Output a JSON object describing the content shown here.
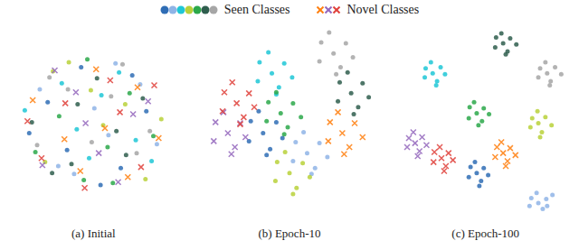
{
  "legend_groups": [
    {
      "label": "Seen Classes",
      "marker": "circle"
    },
    {
      "label": "Novel Classes",
      "marker": "x"
    }
  ],
  "chart_data": [
    {
      "type": "scatter",
      "title": "(a) Initial",
      "xlim": [
        -10,
        10
      ],
      "ylim": [
        -10,
        10
      ],
      "tick_labels": false,
      "grid": false,
      "series": [
        {
          "color": "#2f6db5",
          "marker": "circle",
          "x": [
            -5.2,
            3.1,
            -1.4,
            6.0,
            -7.3,
            0.8,
            4.4,
            -3.0
          ],
          "y": [
            2.1,
            -4.5,
            5.6,
            1.2,
            -1.0,
            -6.2,
            4.8,
            -2.7
          ]
        },
        {
          "color": "#8fb4e6",
          "marker": "circle",
          "x": [
            2.5,
            -6.1,
            7.2,
            -2.2,
            0.1,
            5.3,
            -4.0,
            1.7
          ],
          "y": [
            6.0,
            3.4,
            -2.1,
            -5.1,
            1.5,
            3.9,
            -4.3,
            -1.2
          ]
        },
        {
          "color": "#1fc7d6",
          "marker": "circle",
          "x": [
            -0.5,
            4.8,
            -7.8,
            2.9,
            -3.6,
            6.6,
            -1.9,
            0.9
          ],
          "y": [
            -3.5,
            -1.7,
            1.3,
            5.1,
            4.0,
            -3.8,
            -0.6,
            2.8
          ]
        },
        {
          "color": "#b8d13a",
          "marker": "circle",
          "x": [
            5.9,
            -2.8,
            1.1,
            -5.5,
            7.7,
            -0.3,
            3.6,
            -4.6
          ],
          "y": [
            -5.6,
            6.1,
            -0.2,
            -3.9,
            0.4,
            3.3,
            1.9,
            5.2
          ]
        },
        {
          "color": "#2ca84a",
          "marker": "circle",
          "x": [
            -3.9,
            1.6,
            -6.6,
            4.1,
            -1.1,
            6.8,
            -0.7,
            2.2
          ],
          "y": [
            0.7,
            -2.4,
            -2.9,
            3.0,
            -5.7,
            -1.3,
            6.4,
            -6.0
          ]
        },
        {
          "color": "#2f5e4e",
          "marker": "circle",
          "x": [
            0.4,
            -4.7,
            3.7,
            -1.8,
            5.6,
            -7.0,
            2.6,
            -2.5
          ],
          "y": [
            4.5,
            -5.0,
            -3.2,
            1.9,
            2.5,
            0.1,
            -0.8,
            -4.1
          ]
        },
        {
          "color": "#a6a6a6",
          "marker": "circle",
          "x": [
            -6.4,
            2.0,
            -2.9,
            6.4,
            -0.2,
            3.3,
            -5.0,
            4.9
          ],
          "y": [
            -2.2,
            2.7,
            3.4,
            -0.8,
            -1.9,
            5.9,
            4.6,
            -3.0
          ]
        },
        {
          "color": "#ff7f0e",
          "marker": "x",
          "x": [
            1.3,
            -3.3,
            5.0,
            -6.9,
            0.3,
            -1.5,
            7.4,
            3.9
          ],
          "y": [
            -0.5,
            -1.6,
            3.6,
            2.3,
            5.4,
            -4.8,
            -1.5,
            -5.4
          ]
        },
        {
          "color": "#9467bd",
          "marker": "x",
          "x": [
            -2.0,
            4.5,
            -5.8,
            0.6,
            -4.4,
            2.8,
            6.2,
            -0.9
          ],
          "y": [
            3.1,
            0.9,
            -4.2,
            -3.0,
            5.3,
            -5.9,
            2.2,
            0.0
          ]
        },
        {
          "color": "#e0403a",
          "marker": "x",
          "x": [
            3.0,
            -1.0,
            -7.5,
            5.4,
            -3.2,
            1.9,
            -5.9,
            6.9
          ],
          "y": [
            1.1,
            -6.5,
            0.2,
            -4.4,
            2.0,
            4.3,
            -3.5,
            3.8
          ]
        }
      ]
    },
    {
      "type": "scatter",
      "title": "(b) Epoch-10",
      "xlim": [
        -10,
        10
      ],
      "ylim": [
        -10,
        10
      ],
      "tick_labels": false,
      "grid": false,
      "series": [
        {
          "color": "#2f6db5",
          "marker": "circle",
          "x": [
            -3.0,
            -1.5,
            -4.4,
            -2.2,
            -4.6,
            -0.8,
            -3.5,
            -2.6
          ],
          "y": [
            -1.0,
            0.1,
            0.2,
            -2.6,
            -1.8,
            -1.5,
            1.2,
            -3.2
          ]
        },
        {
          "color": "#8fb4e6",
          "marker": "circle",
          "x": [
            2.0,
            3.4,
            0.7,
            2.9,
            0.4,
            4.3,
            1.6,
            2.5
          ],
          "y": [
            -3.0,
            -2.0,
            -1.9,
            -4.5,
            -3.8,
            -3.4,
            -0.9,
            -5.1
          ]
        },
        {
          "color": "#1fc7d6",
          "marker": "circle",
          "x": [
            -2.0,
            -0.6,
            -3.4,
            -1.2,
            -3.6,
            0.3,
            -2.4,
            -1.5
          ],
          "y": [
            5.0,
            6.0,
            6.1,
            3.6,
            4.2,
            4.6,
            7.1,
            2.9
          ]
        },
        {
          "color": "#b8d13a",
          "marker": "circle",
          "x": [
            0.0,
            1.5,
            -1.4,
            0.8,
            -1.6,
            2.3,
            -0.5,
            0.4
          ],
          "y": [
            -5.0,
            -4.0,
            -3.9,
            -6.5,
            -5.8,
            -5.4,
            -2.9,
            -7.1
          ]
        },
        {
          "color": "#2ca84a",
          "marker": "circle",
          "x": [
            -1.0,
            0.4,
            -2.4,
            -0.2,
            -2.6,
            1.3,
            -1.5,
            -0.6
          ],
          "y": [
            1.0,
            2.0,
            2.1,
            -0.4,
            0.2,
            0.6,
            3.1,
            -1.1
          ]
        },
        {
          "color": "#2f5e4e",
          "marker": "circle",
          "x": [
            7.0,
            8.3,
            5.7,
            7.8,
            5.5,
            9.0,
            6.6,
            7.3
          ],
          "y": [
            3.0,
            4.0,
            4.1,
            1.6,
            2.2,
            2.6,
            5.1,
            0.9
          ]
        },
        {
          "color": "#a6a6a6",
          "marker": "circle",
          "x": [
            5.0,
            6.4,
            3.6,
            5.8,
            3.4,
            7.2,
            4.5,
            5.3
          ],
          "y": [
            7.0,
            8.0,
            8.1,
            5.6,
            6.2,
            6.6,
            9.1,
            4.9
          ]
        },
        {
          "color": "#ff7f0e",
          "marker": "x",
          "x": [
            6.0,
            7.4,
            4.6,
            6.8,
            4.4,
            8.3,
            5.5,
            6.2
          ],
          "y": [
            -1.0,
            0.0,
            0.1,
            -2.4,
            -1.8,
            -1.4,
            1.1,
            -3.1
          ]
        },
        {
          "color": "#9467bd",
          "marker": "x",
          "x": [
            -7.0,
            -5.6,
            -8.4,
            -6.2,
            -8.6,
            -5.0,
            -7.5,
            -6.6
          ],
          "y": [
            -1.0,
            0.0,
            0.1,
            -2.4,
            -1.8,
            -1.4,
            1.1,
            -3.1
          ]
        },
        {
          "color": "#e0403a",
          "marker": "x",
          "x": [
            -6.0,
            -4.6,
            -7.4,
            -5.2,
            -7.6,
            -4.0,
            -6.5,
            -5.6
          ],
          "y": [
            2.0,
            3.0,
            3.1,
            0.6,
            1.2,
            1.6,
            4.1,
            -0.1
          ]
        }
      ]
    },
    {
      "type": "scatter",
      "title": "(c) Epoch-100",
      "xlim": [
        -10,
        10
      ],
      "ylim": [
        -10,
        10
      ],
      "tick_labels": false,
      "grid": false,
      "series": [
        {
          "color": "#2f6db5",
          "marker": "circle",
          "x": [
            -1.0,
            -0.2,
            -1.7,
            -0.5,
            -1.9,
            0.3,
            -1.2,
            -0.7
          ],
          "y": [
            -5.0,
            -4.5,
            -4.4,
            -5.8,
            -5.4,
            -5.2,
            -3.9,
            -6.3
          ]
        },
        {
          "color": "#8fb4e6",
          "marker": "circle",
          "x": [
            6.0,
            6.9,
            5.2,
            6.5,
            5.0,
            7.6,
            5.8,
            7.0
          ],
          "y": [
            -8.0,
            -7.6,
            -7.5,
            -8.6,
            -8.3,
            -7.2,
            -7.0,
            -8.3
          ]
        },
        {
          "color": "#1fc7d6",
          "marker": "circle",
          "x": [
            -6.0,
            -5.1,
            -6.8,
            -5.5,
            -6.9,
            -4.6,
            -6.2,
            -5.6
          ],
          "y": [
            5.0,
            5.6,
            5.5,
            4.2,
            4.6,
            4.9,
            6.1,
            3.8
          ]
        },
        {
          "color": "#b8d13a",
          "marker": "circle",
          "x": [
            6.0,
            6.8,
            5.3,
            6.4,
            5.1,
            7.5,
            5.9,
            6.2
          ],
          "y": [
            0.0,
            0.6,
            0.5,
            -0.9,
            -0.4,
            -0.2,
            1.2,
            -1.4
          ]
        },
        {
          "color": "#2ca84a",
          "marker": "circle",
          "x": [
            -1.0,
            -0.2,
            -1.8,
            -0.4,
            -1.9,
            0.4,
            -1.3,
            -0.8
          ],
          "y": [
            1.0,
            1.5,
            1.6,
            0.2,
            0.5,
            0.9,
            2.1,
            -0.2
          ]
        },
        {
          "color": "#2f5e4e",
          "marker": "circle",
          "x": [
            2.0,
            2.8,
            1.2,
            2.5,
            1.1,
            3.5,
            1.8,
            2.3
          ],
          "y": [
            8.0,
            8.5,
            8.6,
            7.2,
            7.6,
            7.9,
            9.0,
            6.9
          ]
        },
        {
          "color": "#a6a6a6",
          "marker": "circle",
          "x": [
            7.0,
            7.9,
            6.2,
            7.4,
            6.0,
            8.6,
            6.8,
            7.3
          ],
          "y": [
            5.0,
            5.6,
            5.5,
            4.2,
            4.6,
            4.9,
            6.1,
            3.8
          ]
        },
        {
          "color": "#ff7f0e",
          "marker": "x",
          "x": [
            2.0,
            2.8,
            1.3,
            2.5,
            1.1,
            3.4,
            1.8,
            2.3
          ],
          "y": [
            -3.0,
            -2.5,
            -2.4,
            -3.8,
            -3.4,
            -3.2,
            -1.9,
            -4.3
          ]
        },
        {
          "color": "#9467bd",
          "marker": "x",
          "x": [
            -8.0,
            -7.2,
            -8.7,
            -7.5,
            -8.9,
            -6.7,
            -8.2,
            -7.7
          ],
          "y": [
            -2.0,
            -1.4,
            -1.5,
            -2.8,
            -2.4,
            -2.2,
            -0.9,
            -3.3
          ]
        },
        {
          "color": "#e0403a",
          "marker": "x",
          "x": [
            -5.0,
            -4.2,
            -5.8,
            -4.5,
            -5.9,
            -3.7,
            -5.2,
            -4.7
          ],
          "y": [
            -3.5,
            -3.0,
            -2.9,
            -4.3,
            -3.9,
            -3.7,
            -2.4,
            -4.8
          ]
        }
      ]
    }
  ]
}
